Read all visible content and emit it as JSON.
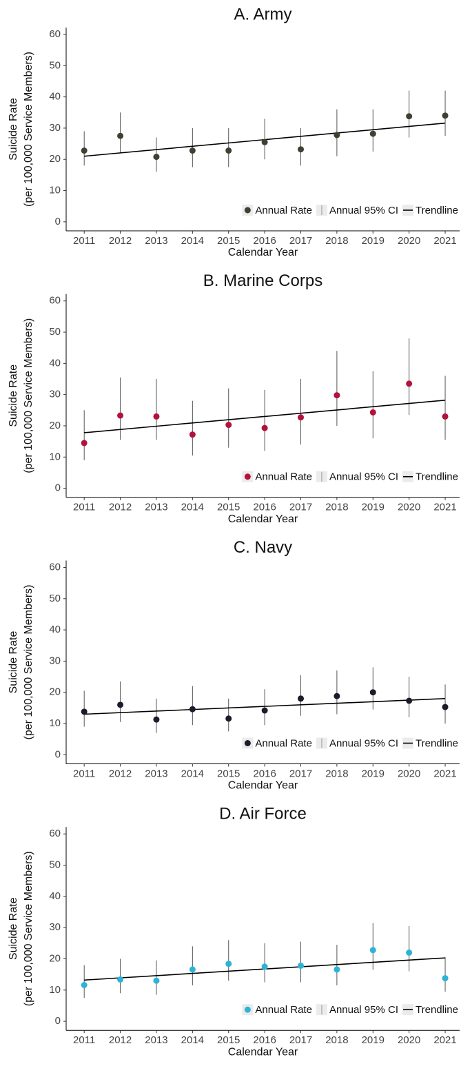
{
  "chart_data": [
    {
      "type": "errorbar",
      "title": "A. Army",
      "xlabel": "Calendar Year",
      "ylabel": [
        "Suicide Rate",
        "(per 100,000 Service Members)"
      ],
      "x": [
        2011,
        2012,
        2013,
        2014,
        2015,
        2016,
        2017,
        2018,
        2019,
        2020,
        2021
      ],
      "xlim": [
        2010.5,
        2021.4
      ],
      "xticks": [
        2011,
        2012,
        2013,
        2014,
        2015,
        2016,
        2017,
        2018,
        2019,
        2020,
        2021
      ],
      "ylim": [
        -2.9,
        62.2
      ],
      "yticks": [
        0,
        10,
        20,
        30,
        40,
        50,
        60
      ],
      "series": [
        {
          "name": "Annual Rate",
          "color": "#3b4231",
          "values": [
            22.8,
            27.5,
            20.8,
            22.8,
            22.8,
            25.5,
            23.2,
            27.8,
            28.2,
            33.8,
            34.0
          ]
        }
      ],
      "ci": {
        "name": "Annual 95% CI",
        "lower": [
          18,
          22,
          16,
          17.5,
          17.5,
          20,
          18,
          21,
          22.5,
          27,
          27.5
        ],
        "upper": [
          29,
          35,
          27,
          30,
          30,
          33,
          30,
          36,
          36,
          42,
          42
        ]
      },
      "trend": {
        "name": "Trendline",
        "x": [
          2011,
          2021
        ],
        "values": [
          21.0,
          31.6
        ]
      }
    },
    {
      "type": "errorbar",
      "title": "B. Marine Corps",
      "xlabel": "Calendar Year",
      "ylabel": [
        "Suicide Rate",
        "(per 100,000 Service Members)"
      ],
      "x": [
        2011,
        2012,
        2013,
        2014,
        2015,
        2016,
        2017,
        2018,
        2019,
        2020,
        2021
      ],
      "xlim": [
        2010.5,
        2021.4
      ],
      "xticks": [
        2011,
        2012,
        2013,
        2014,
        2015,
        2016,
        2017,
        2018,
        2019,
        2020,
        2021
      ],
      "ylim": [
        -2.9,
        62.2
      ],
      "yticks": [
        0,
        10,
        20,
        30,
        40,
        50,
        60
      ],
      "series": [
        {
          "name": "Annual Rate",
          "color": "#b3123d",
          "values": [
            14.5,
            23.3,
            23.0,
            17.2,
            20.3,
            19.3,
            22.7,
            29.8,
            24.3,
            33.5,
            23.0
          ]
        }
      ],
      "ci": {
        "name": "Annual 95% CI",
        "lower": [
          9,
          15.5,
          15.5,
          10.5,
          13,
          12,
          14,
          20,
          16,
          23.5,
          15.5
        ],
        "upper": [
          25,
          35.5,
          35,
          28,
          32,
          31.5,
          35,
          44,
          37.5,
          48,
          36
        ]
      },
      "trend": {
        "name": "Trendline",
        "x": [
          2011,
          2021
        ],
        "values": [
          17.8,
          28.2
        ]
      }
    },
    {
      "type": "errorbar",
      "title": "C. Navy",
      "xlabel": "Calendar Year",
      "ylabel": [
        "Suicide Rate",
        "(per 100,000 Service Members)"
      ],
      "x": [
        2011,
        2012,
        2013,
        2014,
        2015,
        2016,
        2017,
        2018,
        2019,
        2020,
        2021
      ],
      "xlim": [
        2010.5,
        2021.4
      ],
      "xticks": [
        2011,
        2012,
        2013,
        2014,
        2015,
        2016,
        2017,
        2018,
        2019,
        2020,
        2021
      ],
      "ylim": [
        -2.9,
        62.2
      ],
      "yticks": [
        0,
        10,
        20,
        30,
        40,
        50,
        60
      ],
      "series": [
        {
          "name": "Annual Rate",
          "color": "#1b1b2b",
          "values": [
            13.8,
            16.0,
            11.3,
            14.6,
            11.6,
            14.2,
            18.0,
            18.8,
            20.0,
            17.3,
            15.3
          ]
        }
      ],
      "ci": {
        "name": "Annual 95% CI",
        "lower": [
          9,
          10.5,
          7,
          9.5,
          7.5,
          9.5,
          12.5,
          13,
          14.5,
          12,
          10
        ],
        "upper": [
          20.5,
          23.5,
          18,
          22,
          18,
          21,
          25.5,
          27,
          28,
          25,
          22.5
        ]
      },
      "trend": {
        "name": "Trendline",
        "x": [
          2011,
          2021
        ],
        "values": [
          13.0,
          18.0
        ]
      }
    },
    {
      "type": "errorbar",
      "title": "D. Air Force",
      "xlabel": "Calendar Year",
      "ylabel": [
        "Suicide Rate",
        "(per 100,000 Service Members)"
      ],
      "x": [
        2011,
        2012,
        2013,
        2014,
        2015,
        2016,
        2017,
        2018,
        2019,
        2020,
        2021
      ],
      "xlim": [
        2010.5,
        2021.4
      ],
      "xticks": [
        2011,
        2012,
        2013,
        2014,
        2015,
        2016,
        2017,
        2018,
        2019,
        2020,
        2021
      ],
      "ylim": [
        -2.9,
        62.2
      ],
      "yticks": [
        0,
        10,
        20,
        30,
        40,
        50,
        60
      ],
      "series": [
        {
          "name": "Annual Rate",
          "color": "#2cb3d6",
          "values": [
            11.6,
            13.4,
            13.0,
            16.6,
            18.4,
            17.5,
            17.8,
            16.6,
            22.8,
            22.0,
            13.8
          ]
        }
      ],
      "ci": {
        "name": "Annual 95% CI",
        "lower": [
          7.5,
          9,
          8.5,
          11.5,
          13,
          12.5,
          12.5,
          11.5,
          16.5,
          16,
          9.5
        ],
        "upper": [
          18,
          20,
          19.5,
          24,
          26,
          25,
          25.5,
          24.5,
          31.5,
          30.5,
          20.5
        ]
      },
      "trend": {
        "name": "Trendline",
        "x": [
          2011,
          2021
        ],
        "values": [
          13.2,
          20.3
        ]
      }
    }
  ]
}
